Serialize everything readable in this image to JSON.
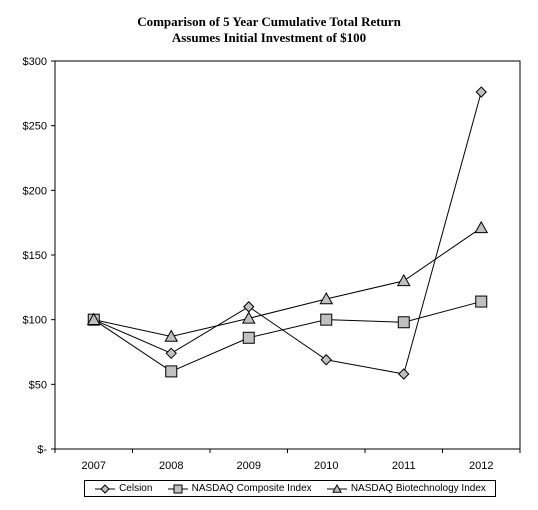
{
  "chart_data": {
    "type": "line",
    "title": "Comparison of 5 Year Cumulative Total Return",
    "subtitle": "Assumes Initial Investment of $100",
    "categories": [
      "2007",
      "2008",
      "2009",
      "2010",
      "2011",
      "2012"
    ],
    "ylim": [
      0,
      300
    ],
    "yticks": [
      0,
      50,
      100,
      150,
      200,
      250,
      300
    ],
    "ytick_labels": [
      "$-",
      "$50",
      "$100",
      "$150",
      "$200",
      "$250",
      "$300"
    ],
    "grid": false,
    "legend_position": "bottom",
    "series": [
      {
        "name": "Celsion",
        "marker": "diamond",
        "values": [
          100,
          74,
          110,
          69,
          58,
          276
        ]
      },
      {
        "name": "NASDAQ Composite Index",
        "marker": "square",
        "values": [
          100,
          60,
          86,
          100,
          98,
          114
        ]
      },
      {
        "name": "NASDAQ Biotechnology Index",
        "marker": "triangle",
        "values": [
          100,
          87,
          101,
          116,
          130,
          171
        ]
      }
    ],
    "colors": {
      "marker_fill": "#c0c0c0",
      "line": "#000000"
    }
  }
}
